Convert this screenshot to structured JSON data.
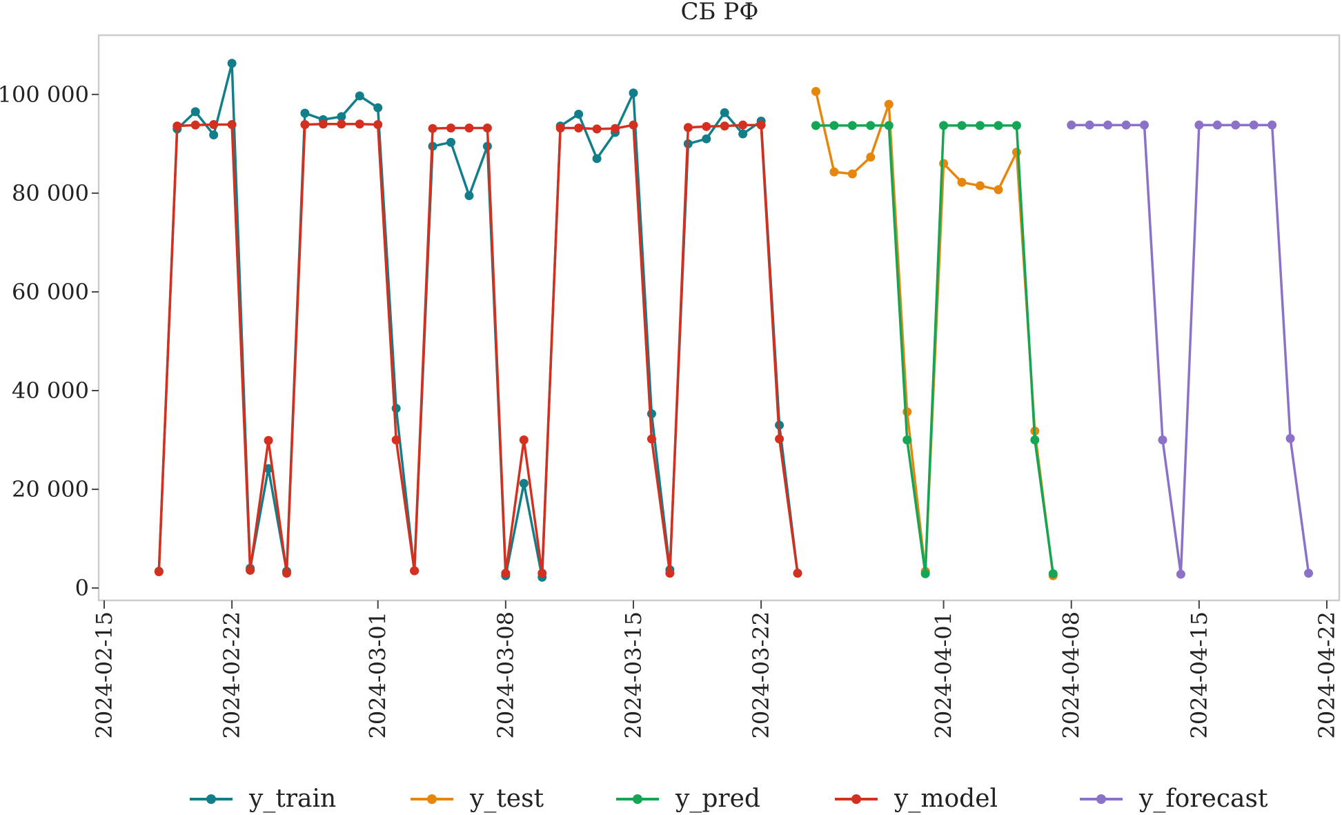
{
  "chart_data": {
    "type": "line",
    "title": "СБ РФ",
    "xlabel": "",
    "ylabel": "",
    "ylim": [
      -2500,
      112000
    ],
    "xlim": [
      "2024-02-15",
      "2024-04-22"
    ],
    "y_ticks": [
      0,
      20000,
      40000,
      60000,
      80000,
      100000
    ],
    "y_tick_labels": [
      "0",
      "20 000",
      "40 000",
      "60 000",
      "80 000",
      "100 000"
    ],
    "x_ticks": [
      "2024-02-15",
      "2024-02-22",
      "2024-03-01",
      "2024-03-08",
      "2024-03-15",
      "2024-03-22",
      "2024-04-01",
      "2024-04-08",
      "2024-04-15",
      "2024-04-22"
    ],
    "grid": false,
    "legend_position": "bottom",
    "series": [
      {
        "name": "y_train",
        "color": "#127e8a",
        "x": [
          "2024-02-18",
          "2024-02-19",
          "2024-02-20",
          "2024-02-21",
          "2024-02-22",
          "2024-02-23",
          "2024-02-24",
          "2024-02-25",
          "2024-02-26",
          "2024-02-27",
          "2024-02-28",
          "2024-02-29",
          "2024-03-01",
          "2024-03-02",
          "2024-03-03",
          "2024-03-04",
          "2024-03-05",
          "2024-03-06",
          "2024-03-07",
          "2024-03-08",
          "2024-03-09",
          "2024-03-10",
          "2024-03-11",
          "2024-03-12",
          "2024-03-13",
          "2024-03-14",
          "2024-03-15",
          "2024-03-16",
          "2024-03-17",
          "2024-03-18",
          "2024-03-19",
          "2024-03-20",
          "2024-03-21",
          "2024-03-22",
          "2024-03-23",
          "2024-03-24"
        ],
        "values": [
          3400,
          93000,
          96500,
          91800,
          106300,
          4000,
          24200,
          3400,
          96200,
          94900,
          95500,
          99700,
          97300,
          36400,
          3500,
          89500,
          90300,
          79500,
          89500,
          2500,
          21200,
          2200,
          93600,
          96000,
          87000,
          92300,
          100300,
          35300,
          3700,
          90000,
          91000,
          96300,
          92000,
          94600,
          33000,
          3000
        ]
      },
      {
        "name": "y_test",
        "color": "#e7860d",
        "x": [
          "2024-03-25",
          "2024-03-26",
          "2024-03-27",
          "2024-03-28",
          "2024-03-29",
          "2024-03-30",
          "2024-03-31",
          "2024-04-01",
          "2024-04-02",
          "2024-04-03",
          "2024-04-04",
          "2024-04-05",
          "2024-04-06",
          "2024-04-07"
        ],
        "values": [
          100600,
          84300,
          83900,
          87300,
          98000,
          35700,
          3400,
          86000,
          82200,
          81500,
          80700,
          88300,
          31800,
          2500
        ]
      },
      {
        "name": "y_pred",
        "color": "#14a555",
        "x": [
          "2024-03-25",
          "2024-03-26",
          "2024-03-27",
          "2024-03-28",
          "2024-03-29",
          "2024-03-30",
          "2024-03-31",
          "2024-04-01",
          "2024-04-02",
          "2024-04-03",
          "2024-04-04",
          "2024-04-05",
          "2024-04-06",
          "2024-04-07"
        ],
        "values": [
          93700,
          93700,
          93700,
          93700,
          93700,
          30000,
          2900,
          93700,
          93700,
          93700,
          93700,
          93700,
          30000,
          2900
        ]
      },
      {
        "name": "y_model",
        "color": "#d43020",
        "x": [
          "2024-02-18",
          "2024-02-19",
          "2024-02-20",
          "2024-02-21",
          "2024-02-22",
          "2024-02-23",
          "2024-02-24",
          "2024-02-25",
          "2024-02-26",
          "2024-02-27",
          "2024-02-28",
          "2024-02-29",
          "2024-03-01",
          "2024-03-02",
          "2024-03-03",
          "2024-03-04",
          "2024-03-05",
          "2024-03-06",
          "2024-03-07",
          "2024-03-08",
          "2024-03-09",
          "2024-03-10",
          "2024-03-11",
          "2024-03-12",
          "2024-03-13",
          "2024-03-14",
          "2024-03-15",
          "2024-03-16",
          "2024-03-17",
          "2024-03-18",
          "2024-03-19",
          "2024-03-20",
          "2024-03-21",
          "2024-03-22",
          "2024-03-23",
          "2024-03-24"
        ],
        "values": [
          3300,
          93600,
          93800,
          93900,
          93900,
          3600,
          29900,
          3000,
          93900,
          94000,
          94000,
          94000,
          93900,
          30000,
          3500,
          93100,
          93200,
          93200,
          93200,
          3000,
          30000,
          3000,
          93200,
          93200,
          93000,
          93100,
          93800,
          30200,
          3000,
          93300,
          93500,
          93600,
          93800,
          93800,
          30200,
          3000
        ]
      },
      {
        "name": "y_forecast",
        "color": "#8b72c8",
        "x": [
          "2024-04-08",
          "2024-04-09",
          "2024-04-10",
          "2024-04-11",
          "2024-04-12",
          "2024-04-13",
          "2024-04-14",
          "2024-04-15",
          "2024-04-16",
          "2024-04-17",
          "2024-04-18",
          "2024-04-19",
          "2024-04-20",
          "2024-04-21"
        ],
        "values": [
          93800,
          93800,
          93800,
          93800,
          93800,
          30000,
          2800,
          93800,
          93800,
          93800,
          93800,
          93800,
          30300,
          3000
        ]
      }
    ]
  }
}
